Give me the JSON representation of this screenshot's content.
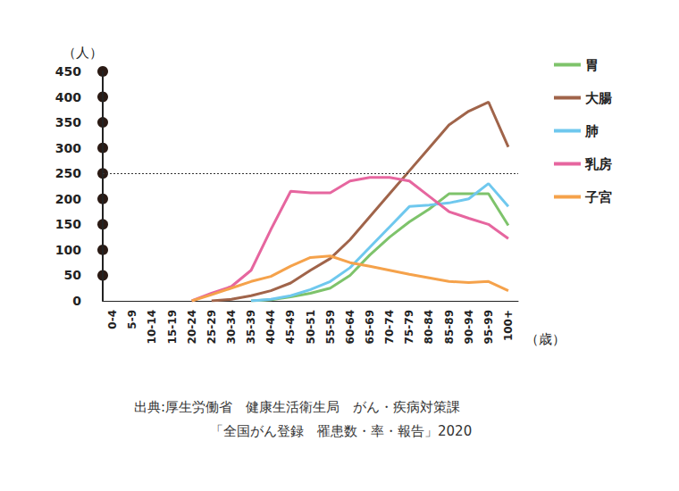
{
  "chart_data": {
    "type": "line",
    "y_label": "（人）",
    "x_label": "（歳）",
    "source": [
      "出典:厚生労働省　健康生活衛生局　がん・疾病対策課",
      "「全国がん登録　罹患数・率・報告」2020"
    ],
    "categories": [
      "0-4",
      "5-9",
      "10-14",
      "15-19",
      "20-24",
      "25-29",
      "30-34",
      "35-39",
      "40-44",
      "45-49",
      "50-51",
      "55-59",
      "60-64",
      "65-69",
      "70-74",
      "75-79",
      "80-84",
      "85-89",
      "90-94",
      "95-99",
      "100+"
    ],
    "series": [
      {
        "name": "胃",
        "color": "#7ec36b",
        "values": [
          null,
          null,
          null,
          null,
          null,
          null,
          null,
          0,
          2,
          8,
          15,
          25,
          50,
          90,
          125,
          155,
          180,
          210,
          210,
          210,
          148
        ]
      },
      {
        "name": "大腸",
        "color": "#a0644a",
        "values": [
          null,
          null,
          null,
          null,
          null,
          0,
          3,
          10,
          20,
          35,
          60,
          83,
          120,
          165,
          210,
          255,
          300,
          345,
          372,
          390,
          302
        ]
      },
      {
        "name": "肺",
        "color": "#6fc8ee",
        "values": [
          null,
          null,
          null,
          null,
          null,
          null,
          null,
          0,
          3,
          10,
          22,
          38,
          65,
          105,
          145,
          185,
          188,
          192,
          200,
          230,
          185
        ]
      },
      {
        "name": "乳房",
        "color": "#e6669f",
        "values": [
          null,
          null,
          null,
          null,
          0,
          15,
          28,
          60,
          140,
          215,
          212,
          212,
          235,
          242,
          242,
          235,
          205,
          175,
          162,
          150,
          122
        ]
      },
      {
        "name": "子宮",
        "color": "#f5a24b",
        "values": [
          null,
          null,
          null,
          null,
          0,
          12,
          25,
          38,
          48,
          68,
          85,
          88,
          75,
          68,
          60,
          52,
          45,
          38,
          36,
          38,
          20
        ]
      }
    ],
    "ylim": [
      0,
      450
    ],
    "yticks": [
      0,
      50,
      100,
      150,
      200,
      250,
      300,
      350,
      400,
      450
    ],
    "hlines": [
      250
    ],
    "grid": false,
    "legend": "right"
  }
}
